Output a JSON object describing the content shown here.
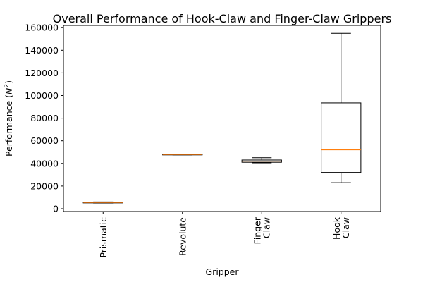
{
  "chart_data": {
    "type": "box",
    "title": "Overall Performance of Hook-Claw and Finger-Claw Grippers",
    "xlabel": "Gripper",
    "ylabel": "Performance (",
    "ylabel_symbol": "N",
    "ylabel_exponent": "2",
    "ylabel_close": ")",
    "ylim": [
      -2500,
      162000
    ],
    "yticks": [
      0,
      20000,
      40000,
      60000,
      80000,
      100000,
      120000,
      140000,
      160000
    ],
    "categories": [
      {
        "lines": [
          "Prismatic"
        ]
      },
      {
        "lines": [
          "Revolute"
        ]
      },
      {
        "lines": [
          "Finger",
          "Claw"
        ]
      },
      {
        "lines": [
          "Hook",
          "Claw"
        ]
      }
    ],
    "boxes": [
      {
        "whisker_low": 5000,
        "q1": 5300,
        "median": 5500,
        "q3": 5700,
        "whisker_high": 6000
      },
      {
        "whisker_low": 47500,
        "q1": 47700,
        "median": 47900,
        "q3": 48100,
        "whisker_high": 48300
      },
      {
        "whisker_low": 40500,
        "q1": 41000,
        "median": 42000,
        "q3": 43000,
        "whisker_high": 45000
      },
      {
        "whisker_low": 23000,
        "q1": 32000,
        "median": 52000,
        "q3": 93500,
        "whisker_high": 155000
      }
    ],
    "colors": {
      "box": "#000000",
      "median": "#ff7f0e"
    }
  }
}
